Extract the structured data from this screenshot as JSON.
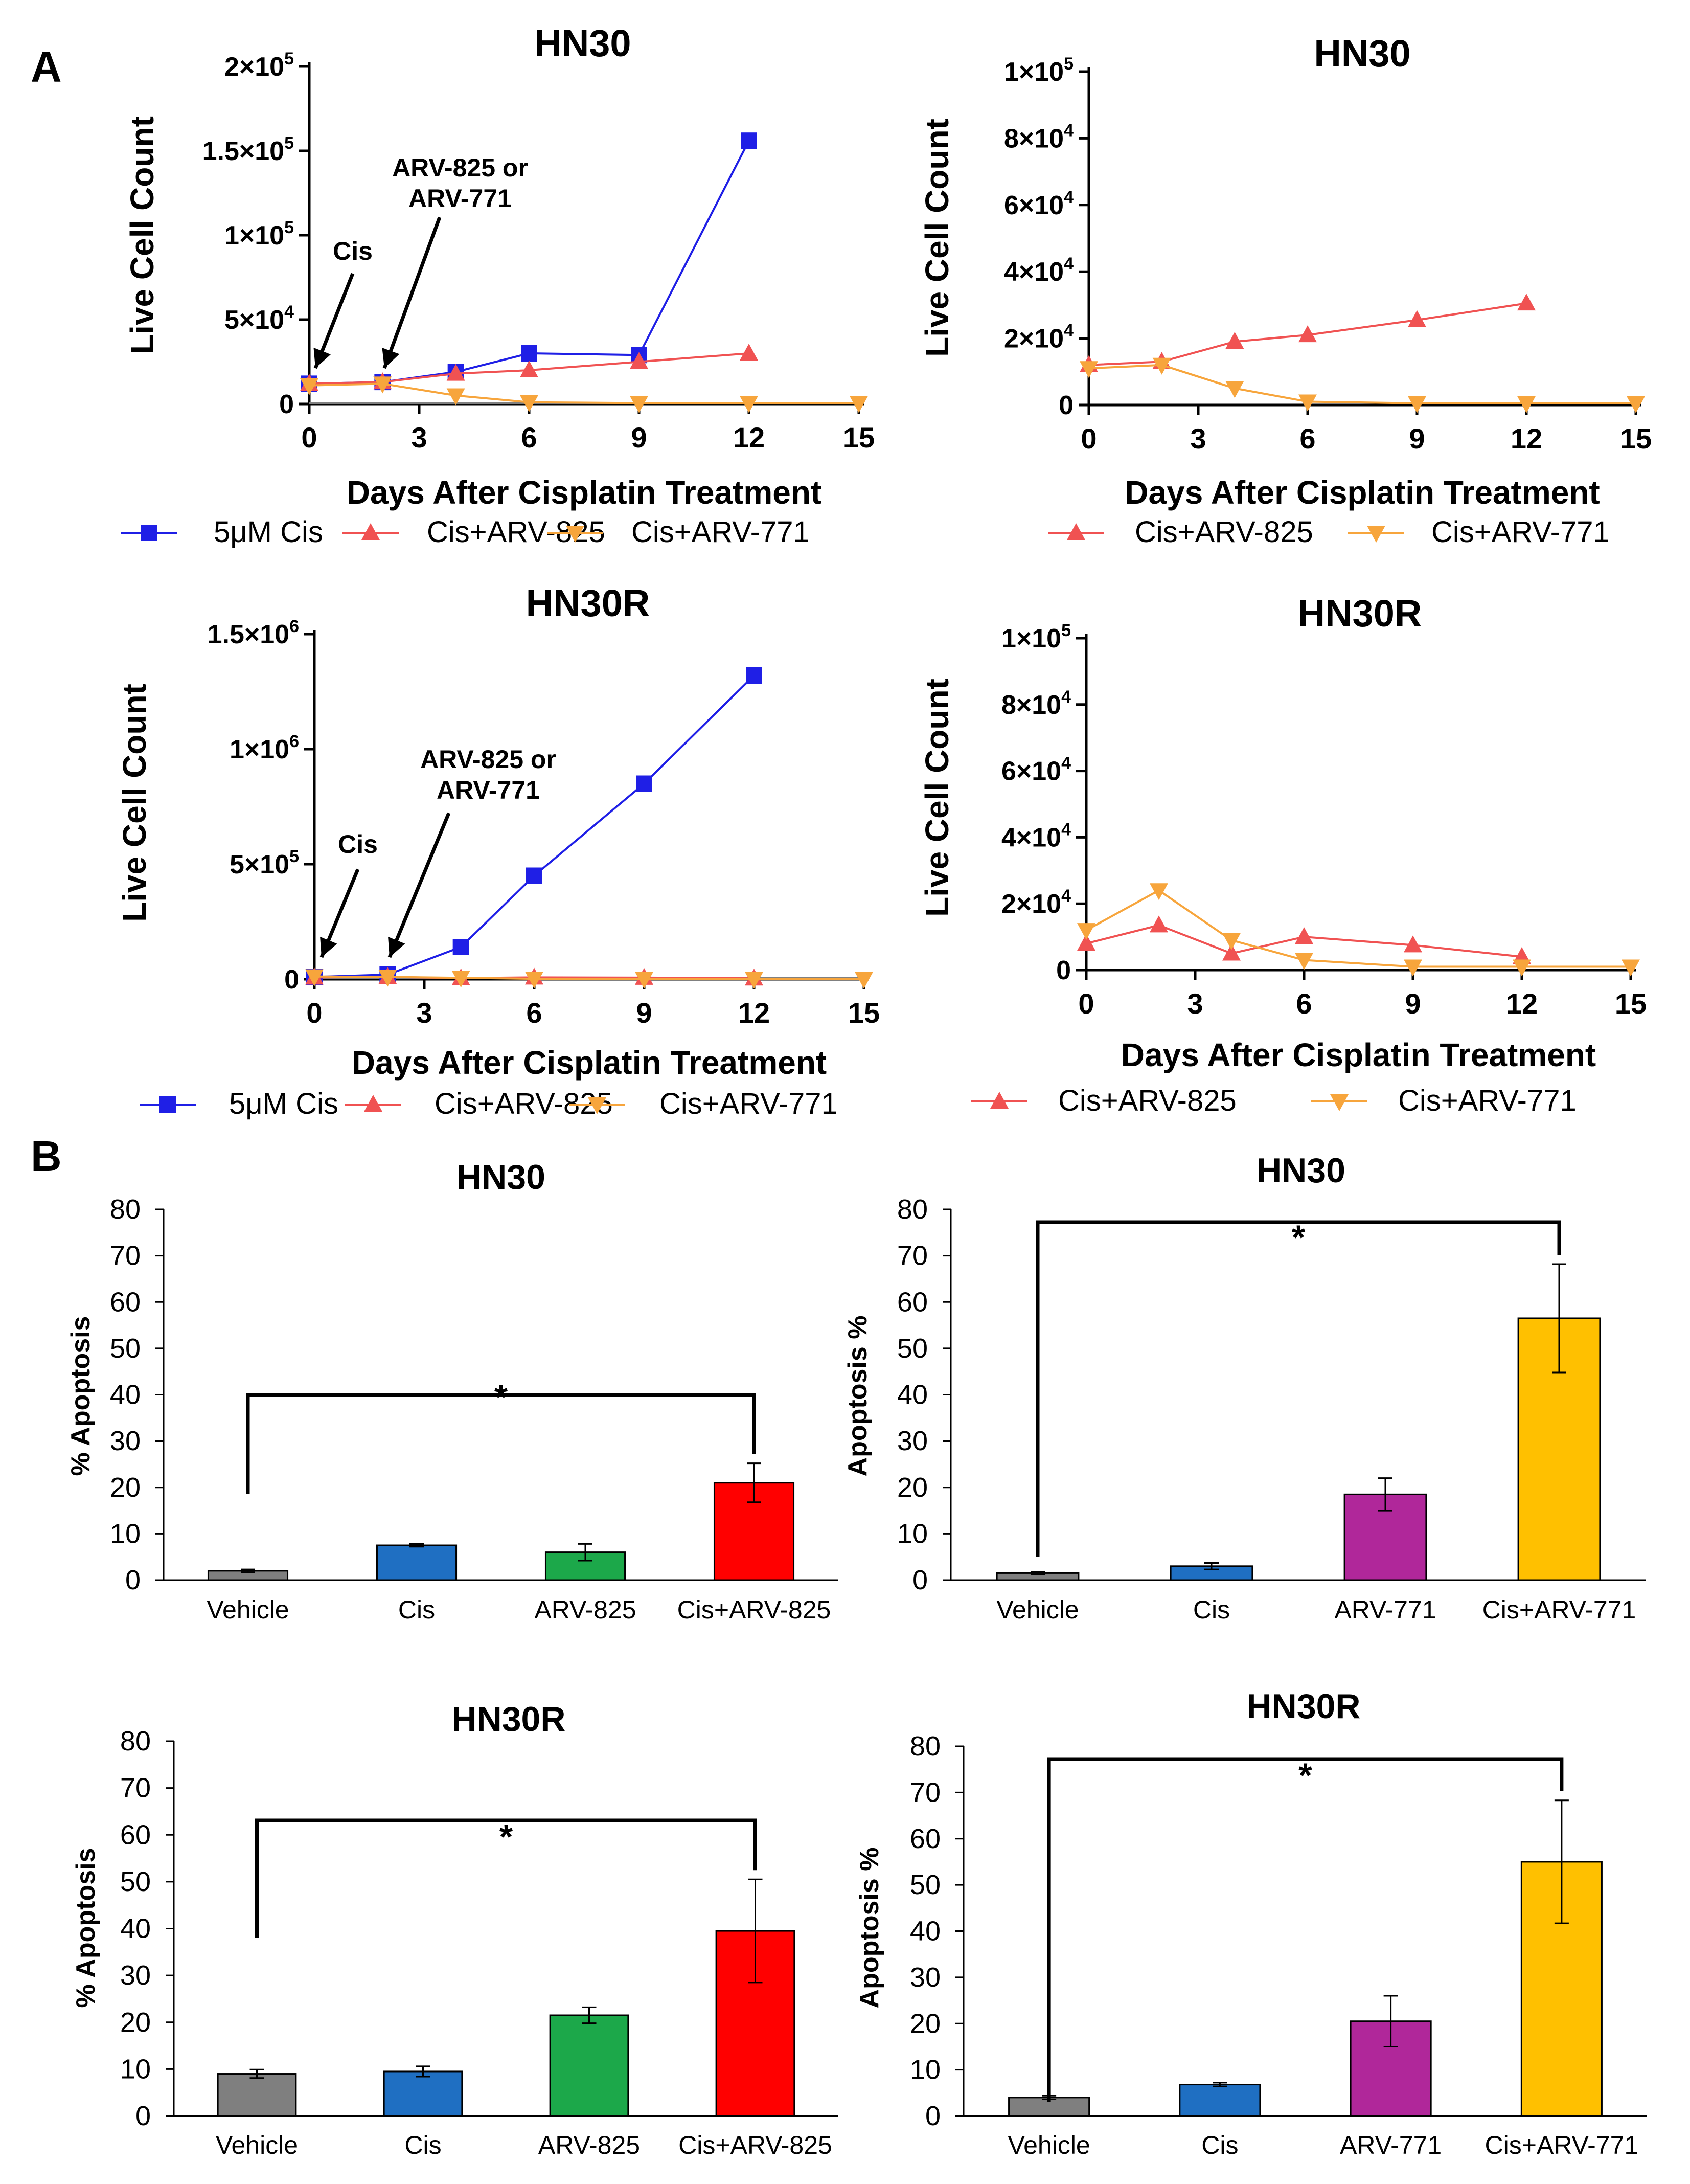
{
  "panel_labels": [
    "A",
    "B"
  ],
  "colors": {
    "cis": "#1f1fe6",
    "arv825": "#f05252",
    "arv771": "#f7a53c",
    "vehicle": "#7f7f7f",
    "bar_cis": "#1f6fc2",
    "bar_arv825": "#1ca84a",
    "bar_cis_arv825": "#ff0000",
    "bar_arv771": "#b0279a",
    "bar_cis_arv771": "#ffc000",
    "axis": "#000000",
    "grey_line": "#808080"
  },
  "annotations": {
    "cis": "Cis",
    "arv_line1": "ARV-825 or",
    "arv_line2": "ARV-771",
    "star": "*"
  },
  "chart_data": [
    {
      "id": "a1",
      "type": "line",
      "title": "HN30",
      "xlabel": "Days After Cisplatin Treatment",
      "ylabel": "Live Cell Count",
      "xlim": [
        0,
        15
      ],
      "xticks": [
        "0",
        "3",
        "6",
        "9",
        "12",
        "15"
      ],
      "ylim": [
        0,
        200000
      ],
      "yticks": [
        {
          "v": 0,
          "b": "0"
        },
        {
          "v": 50000,
          "b": "5×10",
          "e": "4"
        },
        {
          "v": 100000,
          "b": "1×10",
          "e": "5"
        },
        {
          "v": 150000,
          "b": "1.5×10",
          "e": "5"
        },
        {
          "v": 200000,
          "b": "2×10",
          "e": "5"
        }
      ],
      "series": [
        {
          "name": "5μM Cis",
          "marker": "square",
          "color": "#1f1fe6",
          "x": [
            0,
            2,
            4,
            6,
            9,
            12
          ],
          "y": [
            12000,
            13000,
            19000,
            30000,
            29000,
            156000
          ]
        },
        {
          "name": "Cis+ARV-825",
          "marker": "tri-up",
          "color": "#f05252",
          "x": [
            0,
            2,
            4,
            6,
            9,
            12
          ],
          "y": [
            12000,
            13000,
            18000,
            20000,
            25000,
            30000
          ]
        },
        {
          "name": "Cis+ARV-771",
          "marker": "tri-down",
          "color": "#f7a53c",
          "x": [
            0,
            2,
            4,
            6,
            9,
            12,
            15
          ],
          "y": [
            11000,
            12000,
            5000,
            1000,
            500,
            500,
            500
          ]
        }
      ]
    },
    {
      "id": "a2",
      "type": "line",
      "title": "HN30",
      "xlabel": "Days After Cisplatin Treatment",
      "ylabel": "Live Cell Count",
      "xlim": [
        0,
        15
      ],
      "xticks": [
        "0",
        "3",
        "6",
        "9",
        "12",
        "15"
      ],
      "ylim": [
        0,
        100000
      ],
      "yticks": [
        {
          "v": 0,
          "b": "0"
        },
        {
          "v": 20000,
          "b": "2×10",
          "e": "4"
        },
        {
          "v": 40000,
          "b": "4×10",
          "e": "4"
        },
        {
          "v": 60000,
          "b": "6×10",
          "e": "4"
        },
        {
          "v": 80000,
          "b": "8×10",
          "e": "4"
        },
        {
          "v": 100000,
          "b": "1×10",
          "e": "5"
        }
      ],
      "series": [
        {
          "name": "Cis+ARV-825",
          "marker": "tri-up",
          "color": "#f05252",
          "x": [
            0,
            2,
            4,
            6,
            9,
            12
          ],
          "y": [
            12000,
            13000,
            19000,
            21000,
            25500,
            30500
          ]
        },
        {
          "name": "Cis+ARV-771",
          "marker": "tri-down",
          "color": "#f7a53c",
          "x": [
            0,
            2,
            4,
            6,
            9,
            12,
            15
          ],
          "y": [
            11000,
            12000,
            5000,
            1000,
            500,
            500,
            500
          ]
        }
      ]
    },
    {
      "id": "a3",
      "type": "line",
      "title": "HN30R",
      "xlabel": "Days After Cisplatin Treatment",
      "ylabel": "Live Cell Count",
      "xlim": [
        0,
        15
      ],
      "xticks": [
        "0",
        "3",
        "6",
        "9",
        "12",
        "15"
      ],
      "ylim": [
        0,
        1500000
      ],
      "yticks": [
        {
          "v": 0,
          "b": "0"
        },
        {
          "v": 500000,
          "b": "5×10",
          "e": "5"
        },
        {
          "v": 1000000,
          "b": "1×10",
          "e": "6"
        },
        {
          "v": 1500000,
          "b": "1.5×10",
          "e": "6"
        }
      ],
      "series": [
        {
          "name": "5μM Cis",
          "marker": "square",
          "color": "#1f1fe6",
          "x": [
            0,
            2,
            4,
            6,
            9,
            12
          ],
          "y": [
            10000,
            20000,
            140000,
            450000,
            850000,
            1320000
          ]
        },
        {
          "name": "Cis+ARV-825",
          "marker": "tri-up",
          "color": "#f05252",
          "x": [
            0,
            2,
            4,
            6,
            9,
            12
          ],
          "y": [
            8000,
            10000,
            5000,
            8000,
            7000,
            4000
          ]
        },
        {
          "name": "Cis+ARV-771",
          "marker": "tri-down",
          "color": "#f7a53c",
          "x": [
            0,
            2,
            4,
            6,
            9,
            12,
            15
          ],
          "y": [
            12000,
            10000,
            6000,
            2000,
            1000,
            1000,
            1000
          ]
        }
      ]
    },
    {
      "id": "a4",
      "type": "line",
      "title": "HN30R",
      "xlabel": "Days After Cisplatin Treatment",
      "ylabel": "Live Cell Count",
      "xlim": [
        0,
        15
      ],
      "xticks": [
        "0",
        "3",
        "6",
        "9",
        "12",
        "15"
      ],
      "ylim": [
        0,
        100000
      ],
      "yticks": [
        {
          "v": 0,
          "b": "0"
        },
        {
          "v": 20000,
          "b": "2×10",
          "e": "4"
        },
        {
          "v": 40000,
          "b": "4×10",
          "e": "4"
        },
        {
          "v": 60000,
          "b": "6×10",
          "e": "4"
        },
        {
          "v": 80000,
          "b": "8×10",
          "e": "4"
        },
        {
          "v": 100000,
          "b": "1×10",
          "e": "5"
        }
      ],
      "series": [
        {
          "name": "Cis+ARV-825",
          "marker": "tri-up",
          "color": "#f05252",
          "x": [
            0,
            2,
            4,
            6,
            9,
            12
          ],
          "y": [
            8000,
            13500,
            5000,
            10000,
            7500,
            4000
          ]
        },
        {
          "name": "Cis+ARV-771",
          "marker": "tri-down",
          "color": "#f7a53c",
          "x": [
            0,
            2,
            4,
            6,
            9,
            12,
            15
          ],
          "y": [
            12000,
            24000,
            9000,
            3000,
            1000,
            1000,
            1000
          ]
        }
      ]
    },
    {
      "id": "b1",
      "type": "bar",
      "title": "HN30",
      "ylabel": "% Apoptosis",
      "ylim": [
        0,
        80
      ],
      "yticks": [
        "0",
        "10",
        "20",
        "30",
        "40",
        "50",
        "60",
        "70",
        "80"
      ],
      "categories": [
        "Vehicle",
        "Cis",
        "ARV-825",
        "Cis+ARV-825"
      ],
      "values": [
        2,
        7.5,
        6,
        21
      ],
      "errors": [
        0.3,
        0.3,
        1.8,
        4.2
      ],
      "colors": [
        "#7f7f7f",
        "#1f6fc2",
        "#1ca84a",
        "#ff0000"
      ],
      "significance": {
        "from": 0,
        "to": 3,
        "label": "*"
      }
    },
    {
      "id": "b2",
      "type": "bar",
      "title": "HN30",
      "ylabel": "Apoptosis %",
      "ylim": [
        0,
        80
      ],
      "yticks": [
        "0",
        "10",
        "20",
        "30",
        "40",
        "50",
        "60",
        "70",
        "80"
      ],
      "categories": [
        "Vehicle",
        "Cis",
        "ARV-771",
        "Cis+ARV-771"
      ],
      "values": [
        1.5,
        3,
        18.5,
        56.5
      ],
      "errors": [
        0.3,
        0.7,
        3.5,
        11.7
      ],
      "colors": [
        "#7f7f7f",
        "#1f6fc2",
        "#b0279a",
        "#ffc000"
      ],
      "significance": {
        "from": 0,
        "to": 3,
        "label": "*"
      }
    },
    {
      "id": "b3",
      "type": "bar",
      "title": "HN30R",
      "ylabel": "% Apoptosis",
      "ylim": [
        0,
        80
      ],
      "yticks": [
        "0",
        "10",
        "20",
        "30",
        "40",
        "50",
        "60",
        "70",
        "80"
      ],
      "categories": [
        "Vehicle",
        "Cis",
        "ARV-825",
        "Cis+ARV-825"
      ],
      "values": [
        9,
        9.5,
        21.5,
        39.5
      ],
      "errors": [
        0.9,
        1.1,
        1.7,
        11
      ],
      "colors": [
        "#7f7f7f",
        "#1f6fc2",
        "#1ca84a",
        "#ff0000"
      ],
      "significance": {
        "from": 0,
        "to": 3,
        "label": "*"
      }
    },
    {
      "id": "b4",
      "type": "bar",
      "title": "HN30R",
      "ylabel": "Apoptosis %",
      "ylim": [
        0,
        80
      ],
      "yticks": [
        "0",
        "10",
        "20",
        "30",
        "40",
        "50",
        "60",
        "70",
        "80"
      ],
      "categories": [
        "Vehicle",
        "Cis",
        "ARV-771",
        "Cis+ARV-771"
      ],
      "values": [
        4,
        6.8,
        20.5,
        55
      ],
      "errors": [
        0.4,
        0.4,
        5.5,
        13.3
      ],
      "colors": [
        "#7f7f7f",
        "#1f6fc2",
        "#b0279a",
        "#ffc000"
      ],
      "significance": {
        "from": 0,
        "to": 3,
        "label": "*"
      }
    }
  ]
}
